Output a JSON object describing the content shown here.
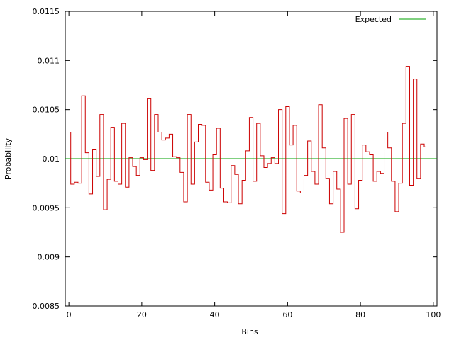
{
  "chart_data": {
    "type": "line",
    "style": "step",
    "xlabel": "Bins",
    "ylabel": "Probability",
    "xlim": [
      -1,
      101
    ],
    "ylim": [
      0.0085,
      0.0115
    ],
    "x_ticks": [
      0,
      20,
      40,
      60,
      80,
      100
    ],
    "x_tick_labels": [
      "0",
      "20",
      "40",
      "60",
      "80",
      "100"
    ],
    "y_ticks": [
      0.0085,
      0.009,
      0.0095,
      0.01,
      0.0105,
      0.011,
      0.0115
    ],
    "y_tick_labels": [
      "0.0085",
      "0.009",
      "0.0095",
      "0.01",
      "0.0105",
      "0.011",
      "0.0115"
    ],
    "grid": false,
    "legend_position": "top-right",
    "series": [
      {
        "color": "#cc0000",
        "x": [
          0,
          1,
          2,
          3,
          4,
          5,
          6,
          7,
          8,
          9,
          10,
          11,
          12,
          13,
          14,
          15,
          16,
          17,
          18,
          19,
          20,
          21,
          22,
          23,
          24,
          25,
          26,
          27,
          28,
          29,
          30,
          31,
          32,
          33,
          34,
          35,
          36,
          37,
          38,
          39,
          40,
          41,
          42,
          43,
          44,
          45,
          46,
          47,
          48,
          49,
          50,
          51,
          52,
          53,
          54,
          55,
          56,
          57,
          58,
          59,
          60,
          61,
          62,
          63,
          64,
          65,
          66,
          67,
          68,
          69,
          70,
          71,
          72,
          73,
          74,
          75,
          76,
          77,
          78,
          79,
          80,
          81,
          82,
          83,
          84,
          85,
          86,
          87,
          88,
          89,
          90,
          91,
          92,
          93,
          94,
          95,
          96,
          97,
          98
        ],
        "values": [
          0.01027,
          0.00974,
          0.00976,
          0.00975,
          0.01064,
          0.01006,
          0.00964,
          0.01009,
          0.00982,
          0.01045,
          0.00948,
          0.00979,
          0.01032,
          0.00977,
          0.00974,
          0.01036,
          0.00971,
          0.01001,
          0.00992,
          0.00983,
          0.01001,
          0.00999,
          0.01061,
          0.00988,
          0.01045,
          0.01027,
          0.01019,
          0.01021,
          0.01025,
          0.01002,
          0.01001,
          0.00986,
          0.00956,
          0.01045,
          0.00974,
          0.01017,
          0.01035,
          0.01034,
          0.00976,
          0.00968,
          0.01004,
          0.01031,
          0.0097,
          0.00956,
          0.00955,
          0.00993,
          0.00984,
          0.00954,
          0.00978,
          0.01008,
          0.01042,
          0.00977,
          0.01036,
          0.01003,
          0.00991,
          0.00995,
          0.01001,
          0.00995,
          0.0105,
          0.00944,
          0.01053,
          0.01014,
          0.01034,
          0.00967,
          0.00965,
          0.00983,
          0.01018,
          0.00987,
          0.00974,
          0.01055,
          0.01011,
          0.0098,
          0.00954,
          0.00987,
          0.00969,
          0.00925,
          0.01041,
          0.00974,
          0.01045,
          0.00949,
          0.00978,
          0.01014,
          0.01007,
          0.01004,
          0.00977,
          0.00987,
          0.00985,
          0.01027,
          0.01011,
          0.00977,
          0.00946,
          0.00975,
          0.01036,
          0.01094,
          0.00973,
          0.01081,
          0.0098,
          0.01015,
          0.01012
        ]
      },
      {
        "name": "Expected",
        "color": "#00a000",
        "constant": 0.01
      }
    ]
  }
}
